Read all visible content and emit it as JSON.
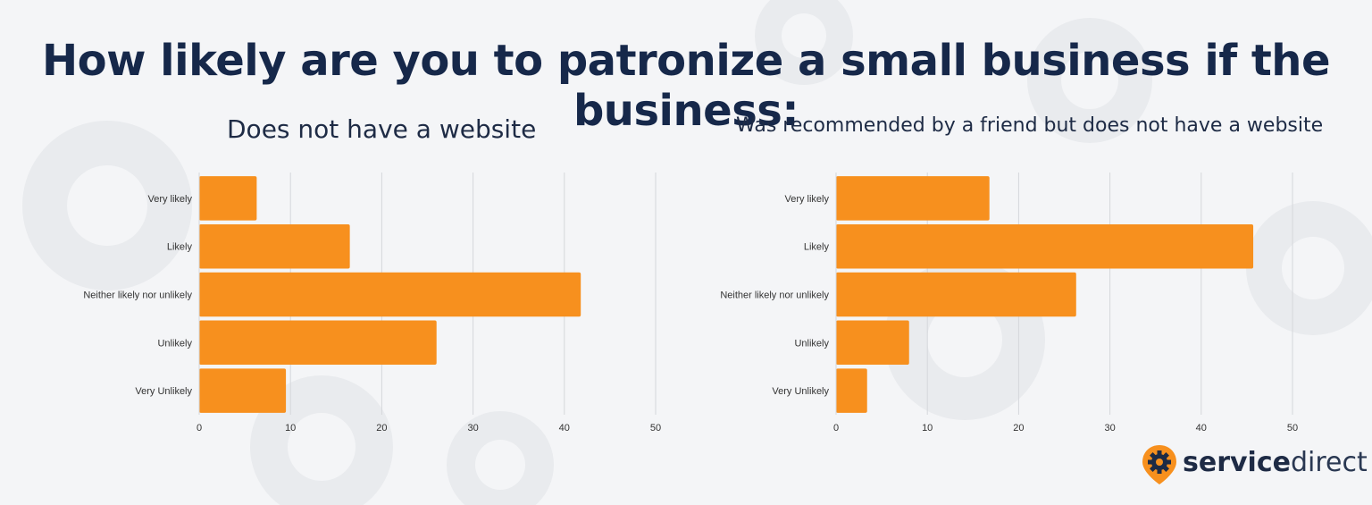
{
  "title": "How likely are you to patronize a small business if the business:",
  "colors": {
    "bar": "#f7901e",
    "title": "#16284a",
    "grid": "#d5d7db"
  },
  "chart_data": [
    {
      "type": "bar",
      "orientation": "horizontal",
      "title": "Does not have a website",
      "categories": [
        "Very likely",
        "Likely",
        "Neither likely nor unlikely",
        "Unlikely",
        "Very Unlikely"
      ],
      "values": [
        6.3,
        16.5,
        41.8,
        26,
        9.5
      ],
      "xlim": [
        0,
        50
      ],
      "xticks": [
        0,
        10,
        20,
        30,
        40,
        50
      ],
      "grid": true,
      "legend": "none"
    },
    {
      "type": "bar",
      "orientation": "horizontal",
      "title": "Was recommended by a friend but does not have a website",
      "categories": [
        "Very likely",
        "Likely",
        "Neither likely nor unlikely",
        "Unlikely",
        "Very Unlikely"
      ],
      "values": [
        16.8,
        45.7,
        26.3,
        8,
        3.4
      ],
      "xlim": [
        0,
        50
      ],
      "xticks": [
        0,
        10,
        20,
        30,
        40,
        50
      ],
      "grid": true,
      "legend": "none"
    }
  ],
  "logo": {
    "part1": "service",
    "part2": "direct",
    "icon": "gear-location-pin-icon"
  }
}
